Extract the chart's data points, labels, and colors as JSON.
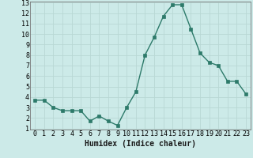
{
  "x": [
    0,
    1,
    2,
    3,
    4,
    5,
    6,
    7,
    8,
    9,
    10,
    11,
    12,
    13,
    14,
    15,
    16,
    17,
    18,
    19,
    20,
    21,
    22,
    23
  ],
  "y": [
    3.7,
    3.7,
    3.0,
    2.7,
    2.7,
    2.7,
    1.7,
    2.2,
    1.7,
    1.3,
    3.0,
    4.5,
    8.0,
    9.7,
    11.7,
    12.8,
    12.8,
    10.5,
    8.2,
    7.3,
    7.0,
    5.5,
    5.5,
    4.3
  ],
  "line_color": "#2d7a6a",
  "marker": "s",
  "marker_size": 2.2,
  "bg_color": "#cceae8",
  "grid_color": "#b8d8d4",
  "xlabel": "Humidex (Indice chaleur)",
  "ylim": [
    1,
    13
  ],
  "xlim": [
    -0.5,
    23.5
  ],
  "yticks": [
    1,
    2,
    3,
    4,
    5,
    6,
    7,
    8,
    9,
    10,
    11,
    12,
    13
  ],
  "xticks": [
    0,
    1,
    2,
    3,
    4,
    5,
    6,
    7,
    8,
    9,
    10,
    11,
    12,
    13,
    14,
    15,
    16,
    17,
    18,
    19,
    20,
    21,
    22,
    23
  ],
  "xlabel_fontsize": 7,
  "tick_fontsize": 6,
  "line_width": 1.0
}
